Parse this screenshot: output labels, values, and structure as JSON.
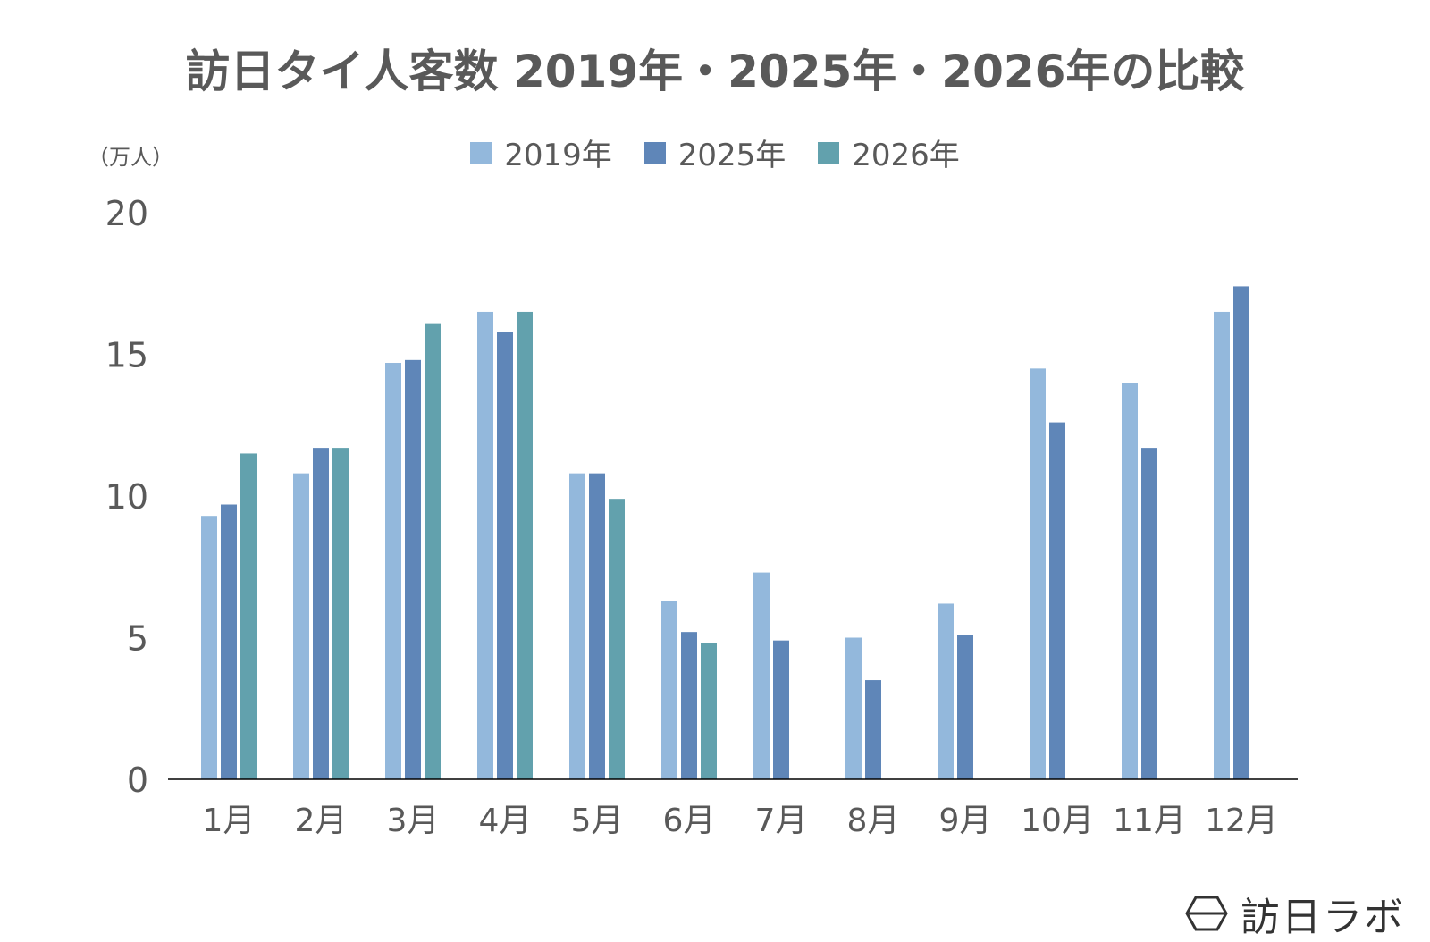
{
  "title": "訪日タイ人客数 2019年・2025年・2026年の比較",
  "unit_label": "（万人）",
  "logo_text": "訪日ラボ",
  "colors": {
    "2019": "#93b8dc",
    "2025": "#5f86b8",
    "2026": "#62a1ad",
    "text": "#595959",
    "axis": "#000000"
  },
  "chart_data": {
    "type": "bar",
    "title": "訪日タイ人客数 2019年・2025年・2026年の比較",
    "ylabel": "（万人）",
    "xlabel": "",
    "ylim": [
      0,
      20
    ],
    "yticks": [
      0,
      5,
      10,
      15,
      20
    ],
    "grid": false,
    "legend_position": "top-center",
    "categories": [
      "1月",
      "2月",
      "3月",
      "4月",
      "5月",
      "6月",
      "7月",
      "8月",
      "9月",
      "10月",
      "11月",
      "12月"
    ],
    "series": [
      {
        "name": "2019年",
        "color": "#93b8dc",
        "values": [
          9.3,
          10.8,
          14.7,
          16.5,
          10.8,
          6.3,
          7.3,
          5.0,
          6.2,
          14.5,
          14.0,
          16.5
        ]
      },
      {
        "name": "2025年",
        "color": "#5f86b8",
        "values": [
          9.7,
          11.7,
          14.8,
          15.8,
          10.8,
          5.2,
          4.9,
          3.5,
          5.1,
          12.6,
          11.7,
          17.4
        ]
      },
      {
        "name": "2026年",
        "color": "#62a1ad",
        "values": [
          11.5,
          11.7,
          16.1,
          16.5,
          9.9,
          4.8,
          null,
          null,
          null,
          null,
          null,
          null
        ]
      }
    ]
  }
}
